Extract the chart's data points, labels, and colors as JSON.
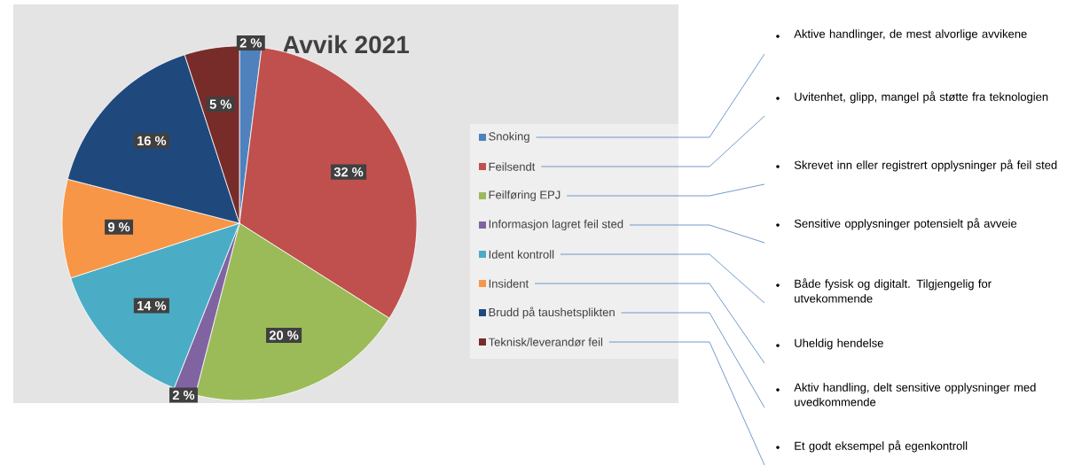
{
  "chart_data": {
    "type": "pie",
    "title": "Avvik 2021",
    "categories": [
      "Snoking",
      "Feilsendt",
      "Feilføring EPJ",
      "Informasjon lagret feil sted",
      "Ident kontroll",
      "Insident",
      "Brudd på taushetsplikten",
      "Teknisk/leverandør feil"
    ],
    "values": [
      2,
      32,
      20,
      2,
      14,
      9,
      16,
      5
    ],
    "value_labels": [
      "2 %",
      "32 %",
      "20 %",
      "2 %",
      "14 %",
      "9 %",
      "16 %",
      "5 %"
    ],
    "colors": [
      "#4f81bd",
      "#c0504d",
      "#9bbb59",
      "#8064a2",
      "#4bacc6",
      "#f79646",
      "#1f497d",
      "#772c2a"
    ],
    "legend": "right",
    "annotations": [
      "Aktive handlinger, de mest alvorlige avvikene",
      "Uvitenhet, glipp, mangel på støtte fra teknologien",
      "Skrevet inn eller registrert opplysninger på feil sted",
      "Sensitive opplysninger potensielt på avveie",
      "Både fysisk og digitalt. Tilgjengelig for utvekommende",
      "Uheldig hendelse",
      "Aktiv handling, delt sensitive opplysninger med uvedkommende",
      "Et godt eksempel på egenkontroll"
    ]
  }
}
